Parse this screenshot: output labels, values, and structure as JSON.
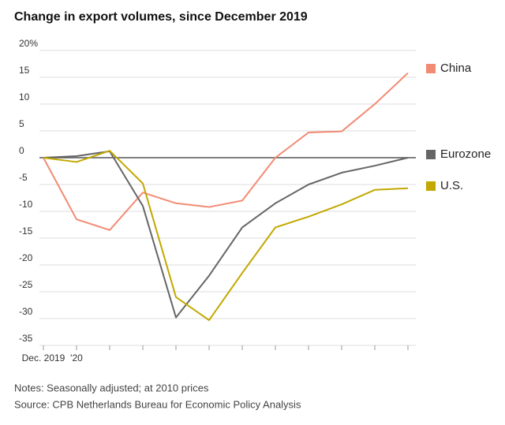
{
  "chart_data": {
    "type": "line",
    "title": "Change in export volumes, since December 2019",
    "notes": "Notes: Seasonally adjusted; at 2010 prices",
    "source": "Source: CPB Netherlands Bureau for Economic Policy Analysis",
    "categories": [
      "Dec. 2019",
      "'20",
      null,
      null,
      null,
      null,
      null,
      null,
      null,
      null,
      null,
      null
    ],
    "series": [
      {
        "name": "China",
        "color": "#f28b74",
        "values": [
          0,
          -11.5,
          -13.5,
          -6.5,
          -8.5,
          -9.2,
          -8,
          0,
          4.7,
          4.9,
          10,
          15.8
        ]
      },
      {
        "name": "Eurozone",
        "color": "#666666",
        "values": [
          0,
          0.3,
          1.2,
          -9,
          -29.8,
          -22,
          -13,
          -8.5,
          -5,
          -2.8,
          -1.5,
          0
        ]
      },
      {
        "name": "U.S.",
        "color": "#c2a800",
        "values": [
          0,
          -0.8,
          1.3,
          -4.8,
          -26,
          -30.3,
          -21.5,
          -13,
          -11,
          -8.7,
          -6,
          -5.7
        ]
      }
    ],
    "ylim": [
      -35,
      20
    ],
    "yticks": [
      {
        "value": 20,
        "label": "20%"
      },
      15,
      10,
      5,
      0,
      -5,
      -10,
      -15,
      -20,
      -25,
      -30,
      -35
    ],
    "grid": true
  }
}
